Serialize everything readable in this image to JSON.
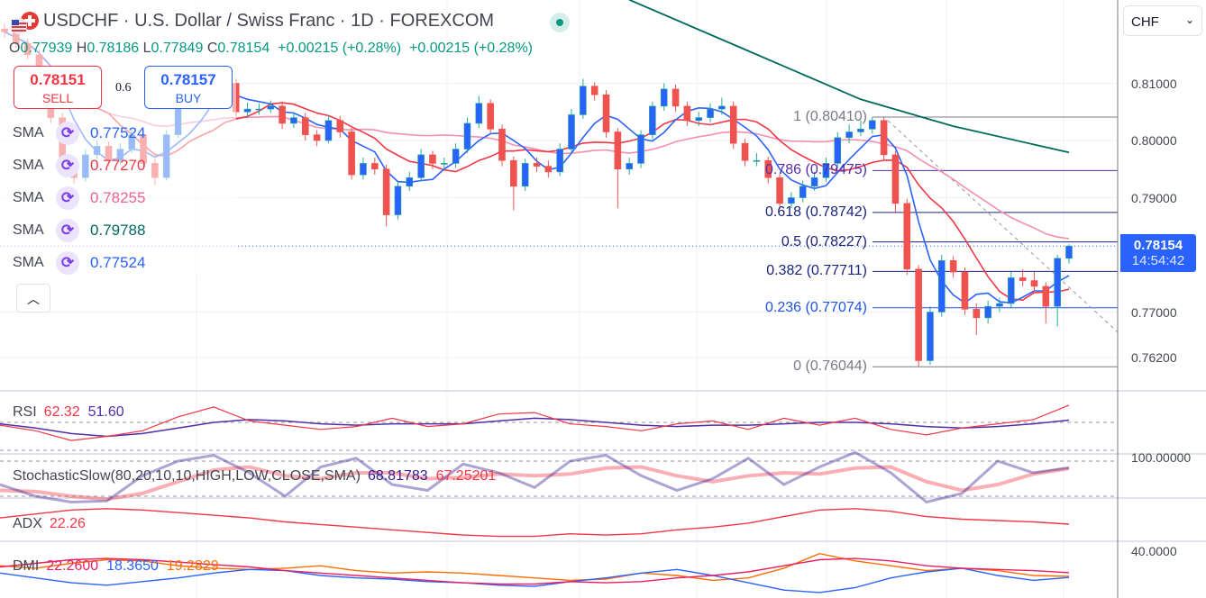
{
  "header": {
    "title": "USDCHF · U.S. Dollar / Swiss Franc · 1D · FOREXCOM",
    "logo_icon": "usd-chf-flags-icon",
    "status_icon": "market-open-dot-icon",
    "ohlc": {
      "o_label": "O",
      "o": "0.77939",
      "h_label": "H",
      "h": "0.78186",
      "l_label": "L",
      "l": "0.77849",
      "c_label": "C",
      "c": "0.78154",
      "change": "+0.00215 (+0.28%)",
      "change2": "+0.00215 (+0.28%)"
    }
  },
  "trade": {
    "sell_price": "0.78151",
    "sell_label": "SELL",
    "spread": "0.6",
    "buy_price": "0.78157",
    "buy_label": "BUY"
  },
  "sma_legend": [
    {
      "name": "SMA",
      "value": "0.77524",
      "color": "#2962ff"
    },
    {
      "name": "SMA",
      "value": "0.77270",
      "color": "#f23645"
    },
    {
      "name": "SMA",
      "value": "0.78255",
      "color": "#f06292"
    },
    {
      "name": "SMA",
      "value": "0.79788",
      "color": "#00695c"
    },
    {
      "name": "SMA",
      "value": "0.77524",
      "color": "#2962ff"
    }
  ],
  "collapse_icon": "chevron-up-icon",
  "price_axis": {
    "currency": "CHF",
    "ticks": [
      "0.81000",
      "0.80000",
      "0.79000",
      "0.77000",
      "0.76200"
    ],
    "current_price": "0.78154",
    "countdown": "14:54:42",
    "stoch_tick": "100.00000",
    "dmi_tick": "40.0000"
  },
  "fib": [
    {
      "label": "1 (0.80410)",
      "level": 0.8041,
      "color": "#787b86"
    },
    {
      "label": "0.786 (0.79475)",
      "level": 0.79475,
      "color": "#512da8"
    },
    {
      "label": "0.618 (0.78742)",
      "level": 0.78742,
      "color": "#1a237e"
    },
    {
      "label": "0.5 (0.78227)",
      "level": 0.78227,
      "color": "#1a237e"
    },
    {
      "label": "0.382 (0.77711)",
      "level": 0.77711,
      "color": "#1a237e"
    },
    {
      "label": "0.236 (0.77074)",
      "level": 0.77074,
      "color": "#1e53e5"
    },
    {
      "label": "0 (0.76044)",
      "level": 0.76044,
      "color": "#787b86"
    }
  ],
  "indicators": {
    "rsi": {
      "name": "RSI",
      "v1": "62.32",
      "v2": "51.60",
      "c1": "#f23645",
      "c2": "#512da8"
    },
    "stoch": {
      "name": "StochasticSlow(80,20,10,10,HIGH,LOW,CLOSE,SMA)",
      "v1": "68.81783",
      "v2": "67.25201",
      "c1": "#311b92",
      "c2": "#f23645"
    },
    "adx": {
      "name": "ADX",
      "v1": "22.26",
      "c1": "#f23645"
    },
    "dmi": {
      "name": "DMI",
      "v1": "22.2600",
      "v2": "18.3650",
      "v3": "19.2829",
      "c1": "#e91e63",
      "c2": "#2962ff",
      "c3": "#ff6d00"
    }
  },
  "chart_data": [
    {
      "type": "candlestick",
      "symbol": "USDCHF",
      "ylim": [
        0.753,
        0.8246
      ],
      "colors": {
        "up": "#2962ff",
        "up_wick": "#22ab94",
        "down": "#ef5350"
      },
      "open": [
        0.8195,
        0.819,
        0.817,
        0.815,
        0.81,
        0.804,
        0.796,
        0.7935,
        0.7975,
        0.799,
        0.7965,
        0.7985,
        0.801,
        0.796,
        0.7935,
        0.801,
        0.8065,
        0.809,
        0.8075,
        0.808,
        0.81,
        0.805,
        0.8055,
        0.8055,
        0.806,
        0.803,
        0.804,
        0.801,
        0.8,
        0.8035,
        0.8015,
        0.794,
        0.796,
        0.795,
        0.787,
        0.792,
        0.7935,
        0.7975,
        0.796,
        0.796,
        0.7985,
        0.803,
        0.8065,
        0.802,
        0.7965,
        0.792,
        0.796,
        0.7955,
        0.7945,
        0.7985,
        0.8045,
        0.8095,
        0.808,
        0.8015,
        0.795,
        0.796,
        0.801,
        0.806,
        0.809,
        0.806,
        0.8035,
        0.804,
        0.8055,
        0.806,
        0.7995,
        0.7965,
        0.7965,
        0.7935,
        0.789,
        0.79,
        0.792,
        0.7935,
        0.796,
        0.8005,
        0.8015,
        0.802,
        0.8035,
        0.7975,
        0.789,
        0.7775,
        0.7615,
        0.77,
        0.779,
        0.777,
        0.7705,
        0.769,
        0.771,
        0.7715,
        0.776,
        0.7755,
        0.7745,
        0.771,
        0.77939
      ],
      "high": [
        0.8205,
        0.8198,
        0.8178,
        0.8158,
        0.8108,
        0.8048,
        0.797,
        0.7985,
        0.8,
        0.7998,
        0.7995,
        0.802,
        0.8018,
        0.7968,
        0.8018,
        0.8075,
        0.81,
        0.8098,
        0.809,
        0.8108,
        0.8108,
        0.8066,
        0.8065,
        0.807,
        0.8068,
        0.805,
        0.8048,
        0.8018,
        0.8045,
        0.8043,
        0.8022,
        0.797,
        0.797,
        0.7958,
        0.7928,
        0.7945,
        0.7985,
        0.7982,
        0.797,
        0.7995,
        0.804,
        0.8078,
        0.8072,
        0.8028,
        0.7972,
        0.7968,
        0.797,
        0.7965,
        0.7995,
        0.8055,
        0.8108,
        0.8102,
        0.8088,
        0.8022,
        0.797,
        0.8018,
        0.8068,
        0.81,
        0.8098,
        0.8068,
        0.805,
        0.8065,
        0.8075,
        0.8068,
        0.8003,
        0.7978,
        0.7972,
        0.7942,
        0.791,
        0.793,
        0.7945,
        0.797,
        0.8015,
        0.8028,
        0.8035,
        0.8041,
        0.804,
        0.7982,
        0.7898,
        0.7782,
        0.771,
        0.78,
        0.7798,
        0.7778,
        0.7715,
        0.772,
        0.7725,
        0.777,
        0.7775,
        0.777,
        0.7752,
        0.78,
        0.78186
      ],
      "low": [
        0.818,
        0.8162,
        0.8142,
        0.8092,
        0.803,
        0.795,
        0.7925,
        0.7928,
        0.7968,
        0.7955,
        0.7958,
        0.7978,
        0.795,
        0.7922,
        0.793,
        0.8005,
        0.8058,
        0.8066,
        0.8068,
        0.8072,
        0.8042,
        0.804,
        0.8045,
        0.8048,
        0.802,
        0.8022,
        0.8,
        0.799,
        0.7995,
        0.8005,
        0.7932,
        0.7932,
        0.794,
        0.785,
        0.7862,
        0.7912,
        0.7928,
        0.795,
        0.795,
        0.7952,
        0.7978,
        0.8022,
        0.8012,
        0.7955,
        0.7878,
        0.7912,
        0.7945,
        0.7935,
        0.7938,
        0.7978,
        0.8038,
        0.807,
        0.8005,
        0.7882,
        0.794,
        0.7952,
        0.8002,
        0.8052,
        0.805,
        0.8025,
        0.8025,
        0.8032,
        0.8045,
        0.7985,
        0.7955,
        0.7955,
        0.7925,
        0.788,
        0.7882,
        0.7892,
        0.7912,
        0.7928,
        0.7952,
        0.7995,
        0.8008,
        0.8012,
        0.7965,
        0.7875,
        0.7765,
        0.7604,
        0.7608,
        0.7692,
        0.776,
        0.7695,
        0.766,
        0.768,
        0.77,
        0.7708,
        0.7745,
        0.7735,
        0.768,
        0.7675,
        0.77849
      ],
      "close": [
        0.819,
        0.817,
        0.815,
        0.81,
        0.804,
        0.796,
        0.7935,
        0.7975,
        0.799,
        0.7965,
        0.7985,
        0.801,
        0.796,
        0.7935,
        0.801,
        0.8065,
        0.809,
        0.8075,
        0.808,
        0.81,
        0.805,
        0.8055,
        0.8055,
        0.806,
        0.803,
        0.804,
        0.801,
        0.8,
        0.8035,
        0.8015,
        0.794,
        0.796,
        0.795,
        0.787,
        0.792,
        0.7935,
        0.7975,
        0.796,
        0.796,
        0.7985,
        0.803,
        0.8065,
        0.802,
        0.7965,
        0.792,
        0.796,
        0.7955,
        0.7945,
        0.7985,
        0.8045,
        0.8095,
        0.808,
        0.8015,
        0.795,
        0.796,
        0.801,
        0.806,
        0.809,
        0.806,
        0.8035,
        0.804,
        0.8055,
        0.806,
        0.7995,
        0.7965,
        0.7965,
        0.7935,
        0.789,
        0.79,
        0.792,
        0.7935,
        0.796,
        0.8005,
        0.8015,
        0.802,
        0.8035,
        0.7975,
        0.789,
        0.7775,
        0.7615,
        0.77,
        0.779,
        0.777,
        0.7705,
        0.769,
        0.771,
        0.7715,
        0.776,
        0.7755,
        0.7745,
        0.771,
        0.7794,
        0.78154
      ],
      "sma_long": [
        [
          54,
          0.8246
        ],
        [
          64,
          0.8159
        ],
        [
          74,
          0.8072
        ],
        [
          82,
          0.8025
        ],
        [
          92,
          0.7979
        ]
      ],
      "current_price": 0.78154
    },
    {
      "type": "line",
      "name": "RSI",
      "ylim": [
        30,
        70
      ],
      "series": [
        {
          "values": [
            48,
            44,
            37,
            40,
            44,
            54,
            61,
            51,
            48,
            45,
            47,
            53,
            47,
            49,
            56,
            57,
            49,
            47,
            44,
            49,
            51,
            45,
            53,
            48,
            53,
            45,
            41,
            46,
            49,
            52,
            62.32
          ]
        },
        {
          "values": [
            49,
            46,
            42,
            40,
            42,
            46,
            50,
            52,
            51,
            49,
            48,
            49,
            49,
            49,
            51,
            53,
            52,
            50,
            48,
            47,
            48,
            48,
            49,
            50,
            50,
            49,
            47,
            46,
            47,
            49,
            51.6
          ]
        }
      ]
    },
    {
      "type": "line",
      "name": "StochasticSlow",
      "ylim": [
        20,
        80
      ],
      "series": [
        {
          "values": [
            40,
            20,
            10,
            12,
            55,
            80,
            90,
            60,
            20,
            70,
            85,
            40,
            30,
            75,
            60,
            35,
            80,
            90,
            55,
            30,
            50,
            85,
            40,
            70,
            95,
            60,
            10,
            25,
            80,
            60,
            68.81783
          ]
        },
        {
          "values": [
            30,
            28,
            20,
            15,
            25,
            45,
            65,
            70,
            55,
            50,
            60,
            60,
            50,
            52,
            58,
            55,
            58,
            68,
            70,
            55,
            45,
            55,
            60,
            58,
            68,
            70,
            45,
            30,
            40,
            58,
            67.25201
          ]
        }
      ]
    },
    {
      "type": "line",
      "name": "ADX",
      "series": [
        {
          "values": [
            27,
            30,
            33,
            34,
            33,
            31,
            29,
            27,
            24,
            22,
            20,
            18,
            16,
            14,
            13,
            13,
            15,
            14,
            15,
            18,
            20,
            23,
            28,
            33,
            34,
            32,
            28,
            26,
            25,
            24,
            22.26
          ]
        }
      ]
    },
    {
      "type": "line",
      "name": "DMI",
      "series": [
        {
          "values": [
            27,
            30,
            33,
            34,
            33,
            31,
            29,
            27,
            24,
            22,
            20,
            18,
            16,
            14,
            13,
            13,
            15,
            14,
            15,
            18,
            20,
            23,
            28,
            33,
            34,
            32,
            28,
            26,
            25,
            24,
            22.26
          ]
        },
        {
          "values": [
            22,
            18,
            14,
            12,
            15,
            18,
            22,
            25,
            24,
            20,
            18,
            17,
            15,
            14,
            12,
            11,
            15,
            18,
            22,
            25,
            20,
            14,
            8,
            6,
            10,
            18,
            23,
            26,
            20,
            16,
            18.365
          ]
        },
        {
          "values": [
            28,
            26,
            30,
            33,
            32,
            28,
            26,
            25,
            26,
            28,
            24,
            22,
            23,
            22,
            20,
            18,
            16,
            17,
            22,
            20,
            16,
            18,
            26,
            38,
            32,
            28,
            24,
            26,
            24,
            20,
            19.2829
          ]
        }
      ]
    }
  ]
}
